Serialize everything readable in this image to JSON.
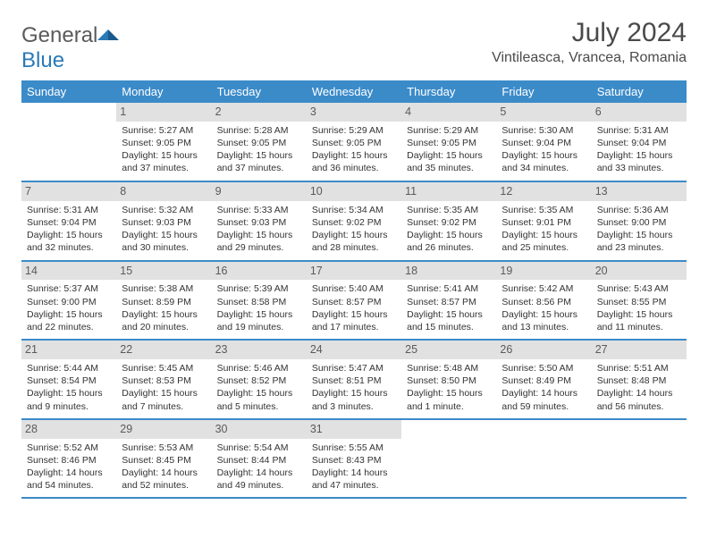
{
  "logo": {
    "text_general": "General",
    "text_blue": "Blue"
  },
  "title": "July 2024",
  "location": "Vintileasca, Vrancea, Romania",
  "weekdays": [
    "Sunday",
    "Monday",
    "Tuesday",
    "Wednesday",
    "Thursday",
    "Friday",
    "Saturday"
  ],
  "colors": {
    "header_bg": "#3b8bc9",
    "header_text": "#ffffff",
    "daynum_bg": "#e1e1e1",
    "daynum_text": "#5a5a5a",
    "body_text": "#333333",
    "border": "#3b8bc9"
  },
  "weeks": [
    [
      null,
      {
        "n": "1",
        "sunrise": "Sunrise: 5:27 AM",
        "sunset": "Sunset: 9:05 PM",
        "day1": "Daylight: 15 hours",
        "day2": "and 37 minutes."
      },
      {
        "n": "2",
        "sunrise": "Sunrise: 5:28 AM",
        "sunset": "Sunset: 9:05 PM",
        "day1": "Daylight: 15 hours",
        "day2": "and 37 minutes."
      },
      {
        "n": "3",
        "sunrise": "Sunrise: 5:29 AM",
        "sunset": "Sunset: 9:05 PM",
        "day1": "Daylight: 15 hours",
        "day2": "and 36 minutes."
      },
      {
        "n": "4",
        "sunrise": "Sunrise: 5:29 AM",
        "sunset": "Sunset: 9:05 PM",
        "day1": "Daylight: 15 hours",
        "day2": "and 35 minutes."
      },
      {
        "n": "5",
        "sunrise": "Sunrise: 5:30 AM",
        "sunset": "Sunset: 9:04 PM",
        "day1": "Daylight: 15 hours",
        "day2": "and 34 minutes."
      },
      {
        "n": "6",
        "sunrise": "Sunrise: 5:31 AM",
        "sunset": "Sunset: 9:04 PM",
        "day1": "Daylight: 15 hours",
        "day2": "and 33 minutes."
      }
    ],
    [
      {
        "n": "7",
        "sunrise": "Sunrise: 5:31 AM",
        "sunset": "Sunset: 9:04 PM",
        "day1": "Daylight: 15 hours",
        "day2": "and 32 minutes."
      },
      {
        "n": "8",
        "sunrise": "Sunrise: 5:32 AM",
        "sunset": "Sunset: 9:03 PM",
        "day1": "Daylight: 15 hours",
        "day2": "and 30 minutes."
      },
      {
        "n": "9",
        "sunrise": "Sunrise: 5:33 AM",
        "sunset": "Sunset: 9:03 PM",
        "day1": "Daylight: 15 hours",
        "day2": "and 29 minutes."
      },
      {
        "n": "10",
        "sunrise": "Sunrise: 5:34 AM",
        "sunset": "Sunset: 9:02 PM",
        "day1": "Daylight: 15 hours",
        "day2": "and 28 minutes."
      },
      {
        "n": "11",
        "sunrise": "Sunrise: 5:35 AM",
        "sunset": "Sunset: 9:02 PM",
        "day1": "Daylight: 15 hours",
        "day2": "and 26 minutes."
      },
      {
        "n": "12",
        "sunrise": "Sunrise: 5:35 AM",
        "sunset": "Sunset: 9:01 PM",
        "day1": "Daylight: 15 hours",
        "day2": "and 25 minutes."
      },
      {
        "n": "13",
        "sunrise": "Sunrise: 5:36 AM",
        "sunset": "Sunset: 9:00 PM",
        "day1": "Daylight: 15 hours",
        "day2": "and 23 minutes."
      }
    ],
    [
      {
        "n": "14",
        "sunrise": "Sunrise: 5:37 AM",
        "sunset": "Sunset: 9:00 PM",
        "day1": "Daylight: 15 hours",
        "day2": "and 22 minutes."
      },
      {
        "n": "15",
        "sunrise": "Sunrise: 5:38 AM",
        "sunset": "Sunset: 8:59 PM",
        "day1": "Daylight: 15 hours",
        "day2": "and 20 minutes."
      },
      {
        "n": "16",
        "sunrise": "Sunrise: 5:39 AM",
        "sunset": "Sunset: 8:58 PM",
        "day1": "Daylight: 15 hours",
        "day2": "and 19 minutes."
      },
      {
        "n": "17",
        "sunrise": "Sunrise: 5:40 AM",
        "sunset": "Sunset: 8:57 PM",
        "day1": "Daylight: 15 hours",
        "day2": "and 17 minutes."
      },
      {
        "n": "18",
        "sunrise": "Sunrise: 5:41 AM",
        "sunset": "Sunset: 8:57 PM",
        "day1": "Daylight: 15 hours",
        "day2": "and 15 minutes."
      },
      {
        "n": "19",
        "sunrise": "Sunrise: 5:42 AM",
        "sunset": "Sunset: 8:56 PM",
        "day1": "Daylight: 15 hours",
        "day2": "and 13 minutes."
      },
      {
        "n": "20",
        "sunrise": "Sunrise: 5:43 AM",
        "sunset": "Sunset: 8:55 PM",
        "day1": "Daylight: 15 hours",
        "day2": "and 11 minutes."
      }
    ],
    [
      {
        "n": "21",
        "sunrise": "Sunrise: 5:44 AM",
        "sunset": "Sunset: 8:54 PM",
        "day1": "Daylight: 15 hours",
        "day2": "and 9 minutes."
      },
      {
        "n": "22",
        "sunrise": "Sunrise: 5:45 AM",
        "sunset": "Sunset: 8:53 PM",
        "day1": "Daylight: 15 hours",
        "day2": "and 7 minutes."
      },
      {
        "n": "23",
        "sunrise": "Sunrise: 5:46 AM",
        "sunset": "Sunset: 8:52 PM",
        "day1": "Daylight: 15 hours",
        "day2": "and 5 minutes."
      },
      {
        "n": "24",
        "sunrise": "Sunrise: 5:47 AM",
        "sunset": "Sunset: 8:51 PM",
        "day1": "Daylight: 15 hours",
        "day2": "and 3 minutes."
      },
      {
        "n": "25",
        "sunrise": "Sunrise: 5:48 AM",
        "sunset": "Sunset: 8:50 PM",
        "day1": "Daylight: 15 hours",
        "day2": "and 1 minute."
      },
      {
        "n": "26",
        "sunrise": "Sunrise: 5:50 AM",
        "sunset": "Sunset: 8:49 PM",
        "day1": "Daylight: 14 hours",
        "day2": "and 59 minutes."
      },
      {
        "n": "27",
        "sunrise": "Sunrise: 5:51 AM",
        "sunset": "Sunset: 8:48 PM",
        "day1": "Daylight: 14 hours",
        "day2": "and 56 minutes."
      }
    ],
    [
      {
        "n": "28",
        "sunrise": "Sunrise: 5:52 AM",
        "sunset": "Sunset: 8:46 PM",
        "day1": "Daylight: 14 hours",
        "day2": "and 54 minutes."
      },
      {
        "n": "29",
        "sunrise": "Sunrise: 5:53 AM",
        "sunset": "Sunset: 8:45 PM",
        "day1": "Daylight: 14 hours",
        "day2": "and 52 minutes."
      },
      {
        "n": "30",
        "sunrise": "Sunrise: 5:54 AM",
        "sunset": "Sunset: 8:44 PM",
        "day1": "Daylight: 14 hours",
        "day2": "and 49 minutes."
      },
      {
        "n": "31",
        "sunrise": "Sunrise: 5:55 AM",
        "sunset": "Sunset: 8:43 PM",
        "day1": "Daylight: 14 hours",
        "day2": "and 47 minutes."
      },
      null,
      null,
      null
    ]
  ]
}
